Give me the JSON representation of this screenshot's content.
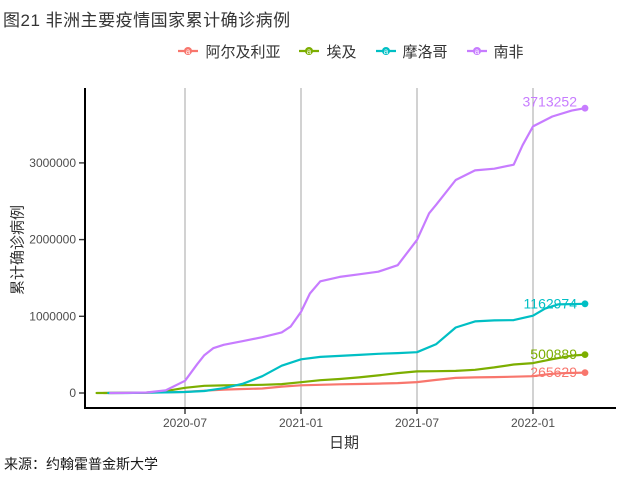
{
  "title": "图21 非洲主要疫情国家累计确诊病例",
  "source": "来源：约翰霍普金斯大学",
  "legend": [
    {
      "label": "阿尔及利亚",
      "color": "#F8766D"
    },
    {
      "label": "埃及",
      "color": "#7CAE00"
    },
    {
      "label": "摩洛哥",
      "color": "#00BFC4"
    },
    {
      "label": "南非",
      "color": "#C77CFF"
    }
  ],
  "colors": {
    "gridline": "#A6A6A6",
    "axis_line": "#000000",
    "tick_text": "#4D4D4D"
  },
  "chart_data": {
    "type": "line",
    "title": "图21 非洲主要疫情国家累计确诊病例",
    "xlabel": "日期",
    "ylabel": "累计确诊病例",
    "x_ticks": [
      "2020-07",
      "2021-01",
      "2021-07",
      "2022-01"
    ],
    "y_ticks": [
      0,
      1000000,
      2000000,
      3000000
    ],
    "y_tick_labels": [
      "0",
      "1000000",
      "2000000",
      "3000000"
    ],
    "ylim": [
      0,
      3800000
    ],
    "grid": "vertical-only",
    "legend_position": "top",
    "series": [
      {
        "name": "阿尔及利亚",
        "color": "#F8766D",
        "end_label": "265629",
        "points": [
          [
            "2020-02-25",
            1
          ],
          [
            "2020-04-01",
            847
          ],
          [
            "2020-05-01",
            4006
          ],
          [
            "2020-06-01",
            9394
          ],
          [
            "2020-07-01",
            13907
          ],
          [
            "2020-08-01",
            29831
          ],
          [
            "2020-09-01",
            44494
          ],
          [
            "2020-10-01",
            51530
          ],
          [
            "2020-11-01",
            58272
          ],
          [
            "2020-12-01",
            83199
          ],
          [
            "2021-01-01",
            99897
          ],
          [
            "2021-02-01",
            107339
          ],
          [
            "2021-03-01",
            113092
          ],
          [
            "2021-04-01",
            117304
          ],
          [
            "2021-05-01",
            122999
          ],
          [
            "2021-06-01",
            129640
          ],
          [
            "2021-07-01",
            141471
          ],
          [
            "2021-08-01",
            170189
          ],
          [
            "2021-09-01",
            197308
          ],
          [
            "2021-10-01",
            203657
          ],
          [
            "2021-11-01",
            206995
          ],
          [
            "2021-12-01",
            212224
          ],
          [
            "2022-01-01",
            218432
          ],
          [
            "2022-01-25",
            245698
          ],
          [
            "2022-02-15",
            258478
          ],
          [
            "2022-03-22",
            265629
          ]
        ]
      },
      {
        "name": "埃及",
        "color": "#7CAE00",
        "end_label": "500889",
        "points": [
          [
            "2020-02-14",
            1
          ],
          [
            "2020-04-01",
            710
          ],
          [
            "2020-05-01",
            5537
          ],
          [
            "2020-06-01",
            24985
          ],
          [
            "2020-07-01",
            68311
          ],
          [
            "2020-08-01",
            93757
          ],
          [
            "2020-09-01",
            99115
          ],
          [
            "2020-10-01",
            103198
          ],
          [
            "2020-11-01",
            107555
          ],
          [
            "2020-12-01",
            115541
          ],
          [
            "2021-01-01",
            140878
          ],
          [
            "2021-02-01",
            166492
          ],
          [
            "2021-03-01",
            182424
          ],
          [
            "2021-04-01",
            203546
          ],
          [
            "2021-05-01",
            229635
          ],
          [
            "2021-06-01",
            258975
          ],
          [
            "2021-07-01",
            282082
          ],
          [
            "2021-08-01",
            284472
          ],
          [
            "2021-09-01",
            288162
          ],
          [
            "2021-10-01",
            302222
          ],
          [
            "2021-11-01",
            333840
          ],
          [
            "2021-12-01",
            372080
          ],
          [
            "2022-01-01",
            389921
          ],
          [
            "2022-02-01",
            441277
          ],
          [
            "2022-03-01",
            486611
          ],
          [
            "2022-03-22",
            500889
          ]
        ]
      },
      {
        "name": "摩洛哥",
        "color": "#00BFC4",
        "end_label": "1162974",
        "points": [
          [
            "2020-03-02",
            1
          ],
          [
            "2020-04-01",
            617
          ],
          [
            "2020-05-01",
            4423
          ],
          [
            "2020-06-01",
            7866
          ],
          [
            "2020-07-01",
            12969
          ],
          [
            "2020-08-01",
            26196
          ],
          [
            "2020-09-01",
            62590
          ],
          [
            "2020-10-01",
            121183
          ],
          [
            "2020-11-01",
            219084
          ],
          [
            "2020-12-01",
            356336
          ],
          [
            "2021-01-01",
            439193
          ],
          [
            "2021-02-01",
            471157
          ],
          [
            "2021-03-01",
            483654
          ],
          [
            "2021-04-01",
            497258
          ],
          [
            "2021-05-01",
            511249
          ],
          [
            "2021-06-01",
            520423
          ],
          [
            "2021-07-01",
            532150
          ],
          [
            "2021-08-01",
            636967
          ],
          [
            "2021-09-01",
            853626
          ],
          [
            "2021-10-01",
            934017
          ],
          [
            "2021-11-01",
            946222
          ],
          [
            "2021-12-01",
            950643
          ],
          [
            "2022-01-01",
            1007743
          ],
          [
            "2022-01-20",
            1100323
          ],
          [
            "2022-02-10",
            1154817
          ],
          [
            "2022-03-22",
            1162974
          ]
        ]
      },
      {
        "name": "南非",
        "color": "#C77CFF",
        "end_label": "3713252",
        "points": [
          [
            "2020-03-05",
            1
          ],
          [
            "2020-04-01",
            1380
          ],
          [
            "2020-05-01",
            5951
          ],
          [
            "2020-06-01",
            34357
          ],
          [
            "2020-07-01",
            159333
          ],
          [
            "2020-07-20",
            373628
          ],
          [
            "2020-08-01",
            493183
          ],
          [
            "2020-08-15",
            583653
          ],
          [
            "2020-09-01",
            628259
          ],
          [
            "2020-10-01",
            676084
          ],
          [
            "2020-11-01",
            727595
          ],
          [
            "2020-12-01",
            790004
          ],
          [
            "2020-12-15",
            866127
          ],
          [
            "2021-01-01",
            1057161
          ],
          [
            "2021-01-15",
            1296806
          ],
          [
            "2021-02-01",
            1456309
          ],
          [
            "2021-03-01",
            1513393
          ],
          [
            "2021-04-01",
            1548157
          ],
          [
            "2021-05-01",
            1581210
          ],
          [
            "2021-06-01",
            1665617
          ],
          [
            "2021-07-01",
            1995556
          ],
          [
            "2021-07-20",
            2342330
          ],
          [
            "2021-08-01",
            2456184
          ],
          [
            "2021-09-01",
            2777659
          ],
          [
            "2021-10-01",
            2902672
          ],
          [
            "2021-11-01",
            2924978
          ],
          [
            "2021-12-01",
            2976613
          ],
          [
            "2021-12-15",
            3231031
          ],
          [
            "2022-01-01",
            3475512
          ],
          [
            "2022-02-01",
            3605222
          ],
          [
            "2022-03-01",
            3681437
          ],
          [
            "2022-03-22",
            3713252
          ]
        ]
      }
    ]
  }
}
